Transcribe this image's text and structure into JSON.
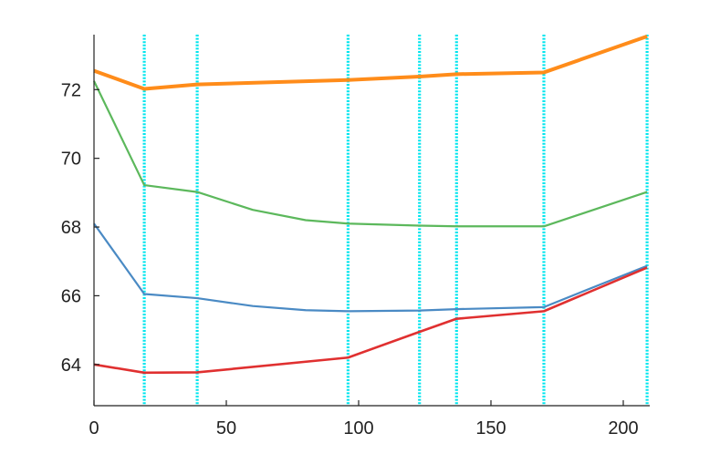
{
  "chart_data": {
    "type": "line",
    "title": "",
    "xlabel": "",
    "ylabel": "",
    "xlim": [
      0,
      210
    ],
    "ylim": [
      62.8,
      73.6
    ],
    "x_ticks": [
      0,
      50,
      100,
      150,
      200
    ],
    "x_tick_labels": [
      "0",
      "50",
      "100",
      "150",
      "200"
    ],
    "y_ticks": [
      64,
      66,
      68,
      70,
      72
    ],
    "y_tick_labels": [
      "64",
      "66",
      "68",
      "70",
      "72"
    ],
    "grid": false,
    "legend": null,
    "vertical_lines": {
      "color": "#00e5ee",
      "style": "dotted",
      "x": [
        19,
        39,
        96,
        123,
        137,
        170,
        209
      ]
    },
    "series": [
      {
        "color": "#ff8c1a",
        "x": [
          0,
          19,
          39,
          96,
          123,
          137,
          170,
          209
        ],
        "values": [
          72.55,
          72.02,
          72.15,
          72.28,
          72.38,
          72.45,
          72.5,
          73.55
        ]
      },
      {
        "color": "#5cb85c",
        "x": [
          0,
          19,
          39,
          60,
          80,
          96,
          123,
          137,
          170,
          209
        ],
        "values": [
          72.25,
          69.22,
          69.02,
          68.5,
          68.2,
          68.1,
          68.04,
          68.02,
          68.02,
          69.02
        ]
      },
      {
        "color": "#4a8ac4",
        "x": [
          0,
          19,
          39,
          60,
          80,
          96,
          123,
          137,
          170,
          209
        ],
        "values": [
          68.1,
          66.05,
          65.93,
          65.7,
          65.58,
          65.55,
          65.57,
          65.61,
          65.67,
          66.87
        ]
      },
      {
        "color": "#e03030",
        "x": [
          0,
          19,
          39,
          96,
          123,
          137,
          170,
          209
        ],
        "values": [
          64,
          63.76,
          63.77,
          64.2,
          64.95,
          65.33,
          65.55,
          66.82
        ]
      }
    ]
  }
}
